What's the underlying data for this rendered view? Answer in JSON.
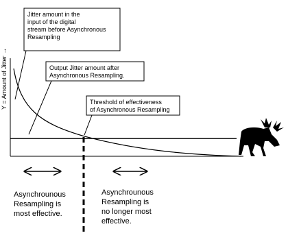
{
  "y_axis_label": "Y = Amount of Jitter →",
  "callouts": [
    {
      "lines": [
        "Jitter amount in the",
        "input of the digital",
        "stream before Asynchronous",
        "Resampling"
      ]
    },
    {
      "lines": [
        "Output Jitter amount after",
        "Asynchronous Resampling."
      ]
    },
    {
      "lines": [
        "Threshold of effectiveness",
        "of Asynchronous Resampling"
      ]
    }
  ],
  "regions": [
    {
      "lines": [
        "Asynchrounous",
        "Resampling is",
        "most effective."
      ]
    },
    {
      "lines": [
        "Asynchrounous",
        "Resampling is",
        "no longer most",
        "effective."
      ]
    }
  ]
}
